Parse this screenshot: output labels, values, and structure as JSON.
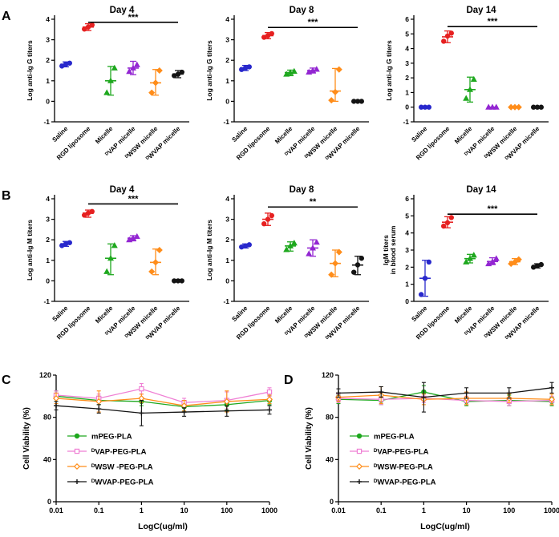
{
  "panels": {
    "a": "A",
    "b": "B",
    "c": "C",
    "d": "D"
  },
  "group_labels": [
    "Saline",
    "RGD liposome",
    "Micelle",
    "ᴰVAP micelle",
    "ᴰWSW micelle",
    "ᴰWVAP micelle"
  ],
  "colors": {
    "saline_blue": "#2828cc",
    "rgd_red": "#e62020",
    "micelle_green": "#1ea81e",
    "vap_purple": "#9326d2",
    "wsw_orange": "#ff8d1a",
    "wvap_black": "#141414",
    "vap_pink": "#ef7fd4"
  },
  "chart_data": [
    {
      "type": "scatter",
      "panel": "A",
      "title": "Day 4",
      "ylabel": "Log anti-Ig G titers",
      "ylim": [
        -1,
        4
      ],
      "yticks": [
        -1,
        0,
        1,
        2,
        3,
        4
      ],
      "groups": [
        {
          "label": "Saline",
          "color": "#2828cc",
          "marker": "circle",
          "points": [
            1.72,
            1.8,
            1.86
          ],
          "mean": 1.8,
          "lo": 1.68,
          "hi": 1.92
        },
        {
          "label": "RGD liposome",
          "color": "#e62020",
          "marker": "circle",
          "points": [
            3.52,
            3.62,
            3.72
          ],
          "mean": 3.62,
          "lo": 3.45,
          "hi": 3.78
        },
        {
          "label": "Micelle",
          "color": "#1ea81e",
          "marker": "triangle",
          "points": [
            0.42,
            1.0,
            1.62
          ],
          "mean": 1.0,
          "lo": 0.3,
          "hi": 1.7
        },
        {
          "label": "ᴰVAP micelle",
          "color": "#9326d2",
          "marker": "triangle",
          "points": [
            1.45,
            1.62,
            1.78
          ],
          "mean": 1.62,
          "lo": 1.3,
          "hi": 1.95
        },
        {
          "label": "ᴰWSW micelle",
          "color": "#ff8d1a",
          "marker": "diamond",
          "points": [
            0.42,
            0.9,
            1.5
          ],
          "mean": 0.9,
          "lo": 0.3,
          "hi": 1.55
        },
        {
          "label": "ᴰWVAP micelle",
          "color": "#141414",
          "marker": "circle",
          "points": [
            1.25,
            1.32,
            1.42
          ],
          "mean": 1.33,
          "lo": 1.15,
          "hi": 1.5
        }
      ],
      "significance": {
        "label": "***",
        "from": 1,
        "to": 5,
        "y": 3.85
      }
    },
    {
      "type": "scatter",
      "panel": "A",
      "title": "Day 8",
      "ylabel": "Log anti-Ig G titers",
      "ylim": [
        -1,
        4
      ],
      "yticks": [
        -1,
        0,
        1,
        2,
        3,
        4
      ],
      "groups": [
        {
          "label": "Saline",
          "color": "#2828cc",
          "marker": "circle",
          "points": [
            1.55,
            1.62,
            1.68
          ],
          "mean": 1.62,
          "lo": 1.5,
          "hi": 1.75
        },
        {
          "label": "RGD liposome",
          "color": "#e62020",
          "marker": "circle",
          "points": [
            3.12,
            3.2,
            3.3
          ],
          "mean": 3.2,
          "lo": 3.05,
          "hi": 3.35
        },
        {
          "label": "Micelle",
          "color": "#1ea81e",
          "marker": "triangle",
          "points": [
            1.32,
            1.4,
            1.46
          ],
          "mean": 1.4,
          "lo": 1.25,
          "hi": 1.52
        },
        {
          "label": "ᴰVAP micelle",
          "color": "#9326d2",
          "marker": "triangle",
          "points": [
            1.42,
            1.5,
            1.56
          ],
          "mean": 1.5,
          "lo": 1.38,
          "hi": 1.62
        },
        {
          "label": "ᴰWSW micelle",
          "color": "#ff8d1a",
          "marker": "diamond",
          "points": [
            0.05,
            0.45,
            1.55
          ],
          "mean": 0.5,
          "lo": 0.0,
          "hi": 1.6
        },
        {
          "label": "ᴰWVAP micelle",
          "color": "#141414",
          "marker": "circle",
          "points": [
            0,
            0,
            0
          ],
          "mean": 0,
          "lo": 0,
          "hi": 0
        }
      ],
      "significance": {
        "label": "***",
        "from": 1,
        "to": 5,
        "y": 3.6
      }
    },
    {
      "type": "scatter",
      "panel": "A",
      "title": "Day 14",
      "ylabel": "Log anti-Ig G titers",
      "ylim": [
        -1,
        6
      ],
      "yticks": [
        -1,
        0,
        1,
        2,
        3,
        4,
        5,
        6
      ],
      "groups": [
        {
          "label": "Saline",
          "color": "#2828cc",
          "marker": "circle",
          "points": [
            0,
            0,
            0
          ],
          "mean": 0,
          "lo": 0,
          "hi": 0
        },
        {
          "label": "RGD liposome",
          "color": "#e62020",
          "marker": "circle",
          "points": [
            4.5,
            4.85,
            5.05
          ],
          "mean": 4.8,
          "lo": 4.4,
          "hi": 5.2
        },
        {
          "label": "Micelle",
          "color": "#1ea81e",
          "marker": "triangle",
          "points": [
            0.6,
            1.2,
            1.9
          ],
          "mean": 1.2,
          "lo": 0.35,
          "hi": 2.05
        },
        {
          "label": "ᴰVAP micelle",
          "color": "#9326d2",
          "marker": "triangle",
          "points": [
            0,
            0,
            0
          ],
          "mean": 0,
          "lo": 0,
          "hi": 0
        },
        {
          "label": "ᴰWSW micelle",
          "color": "#ff8d1a",
          "marker": "diamond",
          "points": [
            0,
            0,
            0
          ],
          "mean": 0,
          "lo": 0,
          "hi": 0
        },
        {
          "label": "ᴰWVAP micelle",
          "color": "#141414",
          "marker": "circle",
          "points": [
            0,
            0,
            0
          ],
          "mean": 0,
          "lo": 0,
          "hi": 0
        }
      ],
      "significance": {
        "label": "***",
        "from": 1,
        "to": 5,
        "y": 5.5
      }
    },
    {
      "type": "scatter",
      "panel": "B",
      "title": "Day 4",
      "ylabel": "Log anti-Ig M titers",
      "ylim": [
        -1,
        4
      ],
      "yticks": [
        -1,
        0,
        1,
        2,
        3,
        4
      ],
      "groups": [
        {
          "label": "Saline",
          "color": "#2828cc",
          "marker": "circle",
          "points": [
            1.72,
            1.8,
            1.86
          ],
          "mean": 1.8,
          "lo": 1.68,
          "hi": 1.92
        },
        {
          "label": "RGD liposome",
          "color": "#e62020",
          "marker": "circle",
          "points": [
            3.2,
            3.3,
            3.38
          ],
          "mean": 3.3,
          "lo": 3.1,
          "hi": 3.45
        },
        {
          "label": "Micelle",
          "color": "#1ea81e",
          "marker": "triangle",
          "points": [
            0.45,
            1.1,
            1.72
          ],
          "mean": 1.1,
          "lo": 0.3,
          "hi": 1.8
        },
        {
          "label": "ᴰVAP micelle",
          "color": "#9326d2",
          "marker": "triangle",
          "points": [
            2.0,
            2.08,
            2.16
          ],
          "mean": 2.08,
          "lo": 1.95,
          "hi": 2.2
        },
        {
          "label": "ᴰWSW micelle",
          "color": "#ff8d1a",
          "marker": "diamond",
          "points": [
            0.45,
            0.9,
            1.5
          ],
          "mean": 0.9,
          "lo": 0.3,
          "hi": 1.55
        },
        {
          "label": "ᴰWVAP micelle",
          "color": "#141414",
          "marker": "circle",
          "points": [
            0,
            0,
            0
          ],
          "mean": 0,
          "lo": 0,
          "hi": 0
        }
      ],
      "significance": {
        "label": "***",
        "from": 1,
        "to": 5,
        "y": 3.75
      }
    },
    {
      "type": "scatter",
      "panel": "B",
      "title": "Day 8",
      "ylabel": "Log anti-Ig M titers",
      "ylim": [
        -1,
        4
      ],
      "yticks": [
        -1,
        0,
        1,
        2,
        3,
        4
      ],
      "groups": [
        {
          "label": "Saline",
          "color": "#2828cc",
          "marker": "circle",
          "points": [
            1.65,
            1.7,
            1.76
          ],
          "mean": 1.7,
          "lo": 1.6,
          "hi": 1.8
        },
        {
          "label": "RGD liposome",
          "color": "#e62020",
          "marker": "circle",
          "points": [
            2.78,
            3.0,
            3.18
          ],
          "mean": 3.0,
          "lo": 2.7,
          "hi": 3.3
        },
        {
          "label": "Micelle",
          "color": "#1ea81e",
          "marker": "triangle",
          "points": [
            1.52,
            1.7,
            1.84
          ],
          "mean": 1.7,
          "lo": 1.45,
          "hi": 1.9
        },
        {
          "label": "ᴰVAP micelle",
          "color": "#9326d2",
          "marker": "triangle",
          "points": [
            1.32,
            1.6,
            1.88
          ],
          "mean": 1.6,
          "lo": 1.2,
          "hi": 2.0
        },
        {
          "label": "ᴰWSW micelle",
          "color": "#ff8d1a",
          "marker": "diamond",
          "points": [
            0.3,
            0.85,
            1.4
          ],
          "mean": 0.85,
          "lo": 0.2,
          "hi": 1.5
        },
        {
          "label": "ᴰWVAP micelle",
          "color": "#141414",
          "marker": "circle",
          "points": [
            0.42,
            0.78,
            1.1
          ],
          "mean": 0.77,
          "lo": 0.3,
          "hi": 1.2
        }
      ],
      "significance": {
        "label": "**",
        "from": 1,
        "to": 5,
        "y": 3.6
      }
    },
    {
      "type": "scatter",
      "panel": "B",
      "title": "Day 14",
      "ylabel": "IgM titers",
      "ylabel2": "in blood serum",
      "ylim": [
        0,
        6
      ],
      "yticks": [
        0,
        1,
        2,
        3,
        4,
        5,
        6
      ],
      "groups": [
        {
          "label": "Saline",
          "color": "#2828cc",
          "marker": "circle",
          "points": [
            0.4,
            1.35,
            2.3
          ],
          "mean": 1.35,
          "lo": 0.3,
          "hi": 2.4
        },
        {
          "label": "RGD liposome",
          "color": "#e62020",
          "marker": "circle",
          "points": [
            4.4,
            4.6,
            4.9
          ],
          "mean": 4.63,
          "lo": 4.3,
          "hi": 4.95
        },
        {
          "label": "Micelle",
          "color": "#1ea81e",
          "marker": "triangle",
          "points": [
            2.3,
            2.5,
            2.7
          ],
          "mean": 2.5,
          "lo": 2.25,
          "hi": 2.75
        },
        {
          "label": "ᴰVAP micelle",
          "color": "#9326d2",
          "marker": "triangle",
          "points": [
            2.2,
            2.32,
            2.5
          ],
          "mean": 2.33,
          "lo": 2.15,
          "hi": 2.55
        },
        {
          "label": "ᴰWSW micelle",
          "color": "#ff8d1a",
          "marker": "diamond",
          "points": [
            2.2,
            2.3,
            2.45
          ],
          "mean": 2.32,
          "lo": 2.15,
          "hi": 2.5
        },
        {
          "label": "ᴰWVAP micelle",
          "color": "#141414",
          "marker": "circle",
          "points": [
            2.0,
            2.08,
            2.15
          ],
          "mean": 2.08,
          "lo": 1.95,
          "hi": 2.2
        }
      ],
      "significance": {
        "label": "***",
        "from": 1,
        "to": 5,
        "y": 5.1
      }
    },
    {
      "type": "line",
      "panel": "C",
      "xlabel": "LogC(ug/ml)",
      "ylabel": "Cell Viability (%)",
      "x": [
        0.01,
        0.1,
        1,
        10,
        100,
        1000
      ],
      "xticklabels": [
        "0.01",
        "0.1",
        "1",
        "10",
        "100",
        "1000"
      ],
      "ylim": [
        0,
        120
      ],
      "yticks": [
        0,
        40,
        80,
        120
      ],
      "legend_position": "inside-bottom-left",
      "series": [
        {
          "name": "mPEG-PLA",
          "color": "#1ea81e",
          "marker": "circle",
          "open": false,
          "values": [
            100,
            96,
            95,
            90,
            92,
            96
          ],
          "err": [
            5,
            4,
            4,
            4,
            5,
            4
          ]
        },
        {
          "name": "ᴰVAP-PEG-PLA",
          "color": "#ef7fd4",
          "marker": "square",
          "open": true,
          "values": [
            101,
            98,
            107,
            94,
            96,
            104
          ],
          "err": [
            4,
            4,
            5,
            4,
            8,
            4
          ]
        },
        {
          "name": "ᴰWSW -PEG-PLA",
          "color": "#ff8d1a",
          "marker": "diamond",
          "open": true,
          "values": [
            98,
            95,
            98,
            91,
            95,
            97
          ],
          "err": [
            5,
            10,
            4,
            5,
            10,
            4
          ]
        },
        {
          "name": "ᴰWVAP-PEG-PLA",
          "color": "#141414",
          "marker": "plus",
          "open": true,
          "values": [
            91,
            88,
            84,
            85,
            86,
            87
          ],
          "err": [
            4,
            4,
            12,
            4,
            5,
            4
          ]
        }
      ]
    },
    {
      "type": "line",
      "panel": "D",
      "xlabel": "LogC(ug/ml)",
      "ylabel": "Cell Viability (%)",
      "x": [
        0.01,
        0.1,
        1,
        10,
        100,
        1000
      ],
      "xticklabels": [
        "0.01",
        "0.1",
        "1",
        "10",
        "100",
        "1000"
      ],
      "ylim": [
        0,
        120
      ],
      "yticks": [
        0,
        40,
        80,
        120
      ],
      "legend_position": "inside-bottom-left",
      "series": [
        {
          "name": "mPEG-PLA",
          "color": "#1ea81e",
          "marker": "circle",
          "open": false,
          "values": [
            97,
            96,
            104,
            95,
            96,
            95
          ],
          "err": [
            4,
            4,
            6,
            4,
            5,
            4
          ]
        },
        {
          "name": "ᴰVAP-PEG-PLA",
          "color": "#ef7fd4",
          "marker": "square",
          "open": true,
          "values": [
            98,
            97,
            98,
            96,
            95,
            96
          ],
          "err": [
            4,
            5,
            4,
            4,
            4,
            4
          ]
        },
        {
          "name": "ᴰWSW-PEG-PLA",
          "color": "#ff8d1a",
          "marker": "diamond",
          "open": true,
          "values": [
            99,
            101,
            97,
            98,
            98,
            97
          ],
          "err": [
            4,
            8,
            5,
            6,
            4,
            5
          ]
        },
        {
          "name": "ᴰWVAP-PEG-PLA",
          "color": "#141414",
          "marker": "plus",
          "open": true,
          "values": [
            103,
            104,
            99,
            103,
            103,
            108
          ],
          "err": [
            4,
            5,
            14,
            5,
            5,
            5
          ]
        }
      ]
    }
  ]
}
